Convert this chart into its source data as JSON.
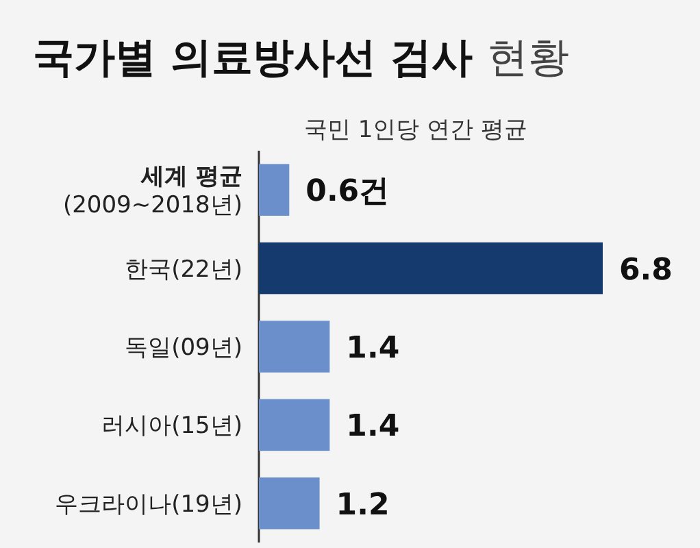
{
  "chart_data": {
    "type": "bar",
    "orientation": "horizontal",
    "title": "국가별 의료방사선 검사 현황",
    "subtitle": "국민 1인당 연간 평균",
    "categories": [
      "세계 평균\n(2009~2018년)",
      "한국(22년)",
      "독일(09년)",
      "러시아(15년)",
      "우크라이나(19년)"
    ],
    "values": [
      0.6,
      6.8,
      1.4,
      1.4,
      1.2
    ],
    "colors": [
      "#6a8fcb",
      "#143a6e",
      "#6a8fcb",
      "#6a8fcb",
      "#6a8fcb"
    ],
    "value_labels": [
      "0.6건",
      "6.8",
      "1.4",
      "1.4",
      "1.2"
    ]
  }
}
